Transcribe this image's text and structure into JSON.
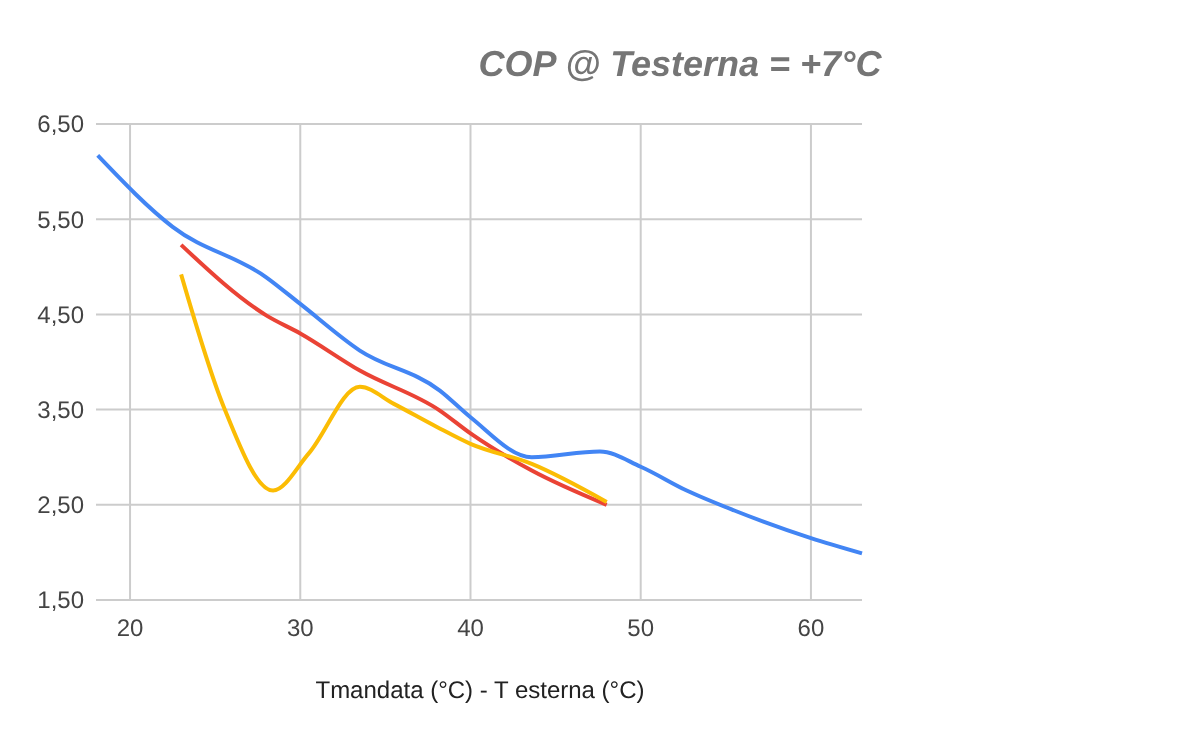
{
  "chart_data": {
    "type": "line",
    "title": "COP @ Testerna = +7°C",
    "xlabel": "Tmandata (°C) - T esterna (°C)",
    "xlim": [
      18,
      63
    ],
    "xticks": [
      20,
      30,
      40,
      50,
      60
    ],
    "ylim": [
      1.5,
      6.5
    ],
    "yticks": [
      {
        "value": 1.5,
        "label": "1,50"
      },
      {
        "value": 2.5,
        "label": "2,50"
      },
      {
        "value": 3.5,
        "label": "3,50"
      },
      {
        "value": 4.5,
        "label": "4,50"
      },
      {
        "value": 5.5,
        "label": "5,50"
      },
      {
        "value": 6.5,
        "label": "6,50"
      }
    ],
    "grid": true,
    "legend": false,
    "series": [
      {
        "color": "#4285f4",
        "x": [
          18.1,
          22.5,
          28,
          30,
          33.5,
          38.2,
          40,
          43.6,
          47.6,
          50,
          52.7,
          55.5,
          60,
          63
        ],
        "values": [
          6.17,
          5.42,
          4.89,
          4.61,
          4.12,
          3.7,
          3.42,
          3.0,
          3.06,
          2.9,
          2.65,
          2.44,
          2.15,
          1.99
        ]
      },
      {
        "color": "#ea4335",
        "x": [
          23,
          28,
          30,
          33.5,
          38.2,
          40,
          43.6,
          48
        ],
        "values": [
          5.23,
          4.49,
          4.3,
          3.91,
          3.49,
          3.25,
          2.86,
          2.5
        ]
      },
      {
        "color": "#fbbc04",
        "x": [
          23,
          25.5,
          28.4,
          30.5,
          33.5,
          35.5,
          38,
          40,
          43.6,
          48
        ],
        "values": [
          4.92,
          3.53,
          2.65,
          3.04,
          3.74,
          3.56,
          3.32,
          3.14,
          2.93,
          2.53
        ]
      }
    ]
  }
}
